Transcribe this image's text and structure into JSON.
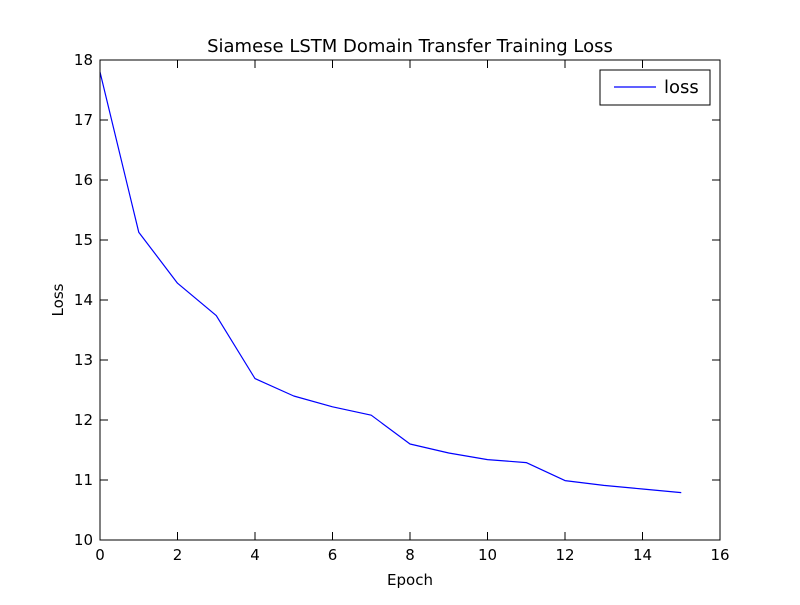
{
  "chart_data": {
    "type": "line",
    "title": "Siamese LSTM Domain Transfer Training Loss",
    "xlabel": "Epoch",
    "ylabel": "Loss",
    "xlim": [
      0,
      16
    ],
    "ylim": [
      10,
      18
    ],
    "xticks": [
      "0",
      "2",
      "4",
      "6",
      "8",
      "10",
      "12",
      "14",
      "16"
    ],
    "yticks": [
      "10",
      "11",
      "12",
      "13",
      "14",
      "15",
      "16",
      "17",
      "18"
    ],
    "grid": false,
    "legend_position": "top-right",
    "series": [
      {
        "name": "loss",
        "color": "#0000ff",
        "x": [
          0,
          1,
          2,
          3,
          4,
          5,
          6,
          7,
          8,
          9,
          10,
          11,
          12,
          13,
          14,
          15
        ],
        "y": [
          17.8,
          15.13,
          14.28,
          13.74,
          12.69,
          12.4,
          12.22,
          12.08,
          11.6,
          11.45,
          11.34,
          11.29,
          10.99,
          10.91,
          10.85,
          10.79
        ]
      }
    ]
  }
}
